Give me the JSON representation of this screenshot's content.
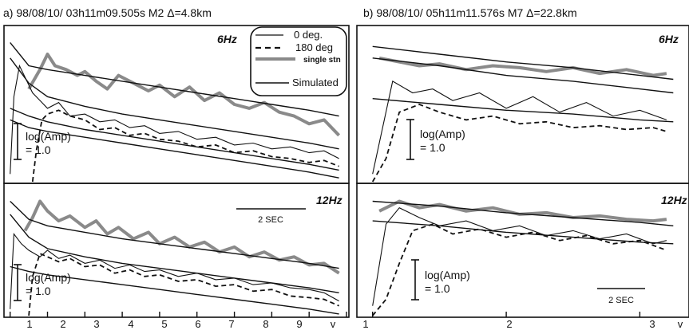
{
  "panels": [
    {
      "header": "a)  98/08/10/ 03h11m09.505s   M2  Δ=4.8km",
      "legend": [
        "0 deg.",
        "180 deg",
        "single stn",
        "Simulated"
      ],
      "subplots": [
        {
          "freq": "6Hz",
          "scale_label": [
            "log(Amp)",
            "= 1.0"
          ]
        },
        {
          "freq": "12Hz",
          "scale_label": [
            "log(Amp)",
            "= 1.0"
          ],
          "time_bar_label": "2 SEC"
        }
      ],
      "x_ticks": [
        "1",
        "2",
        "3",
        "4",
        "5",
        "6",
        "7",
        "8",
        "9",
        "v"
      ]
    },
    {
      "header": "b)  98/08/10/ 05h11m11.576s   M7  Δ=22.8km",
      "subplots": [
        {
          "freq": "6Hz",
          "scale_label": [
            "log(Amp)",
            "= 1.0"
          ]
        },
        {
          "freq": "12Hz",
          "scale_label": [
            "log(Amp)",
            "= 1.0"
          ],
          "time_bar_label": "2 SEC"
        }
      ],
      "x_ticks": [
        "1",
        "2",
        "3",
        "v"
      ]
    }
  ],
  "colors": {
    "frame": "#111111",
    "observed": "#111111",
    "single_station": "#8a8a8a",
    "simulated": "#111111"
  },
  "chart_data": [
    {
      "type": "line",
      "panel": "a",
      "freq": "6Hz",
      "series": [
        {
          "name": "0 deg.",
          "x": [
            1.0,
            1.1,
            1.25,
            1.4,
            1.6,
            1.8,
            2.0,
            2.3,
            2.6,
            3.0,
            3.4,
            3.8,
            4.2,
            4.6,
            5.0,
            5.5,
            6.0,
            6.5,
            7.0,
            7.5,
            8.0,
            8.5,
            9.0,
            9.4,
            9.8
          ],
          "y": [
            0.2,
            2.2,
            3.0,
            2.7,
            2.3,
            2.1,
            1.9,
            2.05,
            1.7,
            1.75,
            1.55,
            1.6,
            1.4,
            1.45,
            1.25,
            1.3,
            1.1,
            1.15,
            0.95,
            1.0,
            0.85,
            0.9,
            0.75,
            0.8,
            0.6
          ]
        },
        {
          "name": "180 deg",
          "x": [
            1.6,
            1.7,
            1.85,
            2.0,
            2.3,
            2.6,
            3.0,
            3.4,
            3.8,
            4.2,
            4.6,
            5.0,
            5.5,
            6.0,
            6.5,
            7.0,
            7.5,
            8.0,
            8.5,
            9.0,
            9.4,
            9.8
          ],
          "y": [
            0.0,
            0.8,
            1.6,
            1.75,
            1.85,
            1.7,
            1.6,
            1.35,
            1.4,
            1.2,
            1.25,
            1.1,
            1.05,
            0.9,
            0.95,
            0.75,
            0.8,
            0.65,
            0.6,
            0.5,
            0.55,
            0.4
          ]
        },
        {
          "name": "single stn",
          "x": [
            1.5,
            1.8,
            2.0,
            2.2,
            2.5,
            2.8,
            3.0,
            3.3,
            3.6,
            3.9,
            4.3,
            4.7,
            5.0,
            5.4,
            5.8,
            6.2,
            6.6,
            7.0,
            7.4,
            7.8,
            8.2,
            8.6,
            9.0,
            9.4,
            9.8
          ],
          "y": [
            2.4,
            2.9,
            3.3,
            3.0,
            2.9,
            2.75,
            2.85,
            2.6,
            2.4,
            2.75,
            2.55,
            2.35,
            2.5,
            2.2,
            2.45,
            2.1,
            2.3,
            2.0,
            1.9,
            2.05,
            1.8,
            1.7,
            1.5,
            1.6,
            1.2
          ]
        },
        {
          "name": "Simulated",
          "x": [
            1.0,
            1.5,
            2.0,
            3.0,
            4.0,
            5.0,
            6.0,
            7.0,
            8.0,
            9.0,
            9.8
          ],
          "y": [
            3.6,
            3.0,
            2.9,
            2.75,
            2.6,
            2.45,
            2.3,
            2.15,
            2.0,
            1.85,
            1.7
          ]
        },
        {
          "name": "Simulated",
          "x": [
            1.0,
            1.5,
            2.0,
            3.0,
            4.0,
            5.0,
            6.0,
            7.0,
            8.0,
            9.0,
            9.8
          ],
          "y": [
            3.2,
            2.55,
            2.2,
            1.95,
            1.75,
            1.6,
            1.45,
            1.3,
            1.15,
            1.0,
            0.85
          ]
        },
        {
          "name": "Simulated",
          "x": [
            1.0,
            1.5,
            2.0,
            3.0,
            4.0,
            5.0,
            6.0,
            7.0,
            8.0,
            9.0,
            9.8
          ],
          "y": [
            1.6,
            1.4,
            1.3,
            1.15,
            1.0,
            0.85,
            0.7,
            0.55,
            0.4,
            0.25,
            0.1
          ]
        },
        {
          "name": "Simulated",
          "x": [
            1.0,
            1.5,
            2.0,
            3.0,
            4.0,
            5.0,
            6.0,
            7.0,
            8.0,
            9.0,
            9.8
          ],
          "y": [
            1.9,
            1.7,
            1.55,
            1.35,
            1.2,
            1.05,
            0.9,
            0.75,
            0.6,
            0.45,
            0.3
          ]
        }
      ],
      "xlim": [
        0.9,
        10.0
      ],
      "ylim": [
        0,
        4
      ]
    },
    {
      "type": "line",
      "panel": "a",
      "freq": "12Hz",
      "series": [
        {
          "name": "0 deg.",
          "x": [
            1.0,
            1.1,
            1.3,
            1.5,
            1.8,
            2.0,
            2.3,
            2.6,
            3.0,
            3.4,
            3.8,
            4.2,
            4.6,
            5.0,
            5.5,
            6.0,
            6.5,
            7.0,
            7.5,
            8.0,
            8.5,
            9.0,
            9.4,
            9.8
          ],
          "y": [
            0.2,
            2.5,
            2.2,
            2.0,
            1.8,
            2.0,
            1.75,
            1.85,
            1.6,
            1.7,
            1.45,
            1.55,
            1.35,
            1.4,
            1.2,
            1.3,
            1.1,
            1.15,
            0.95,
            1.0,
            0.85,
            0.8,
            0.7,
            0.45
          ]
        },
        {
          "name": "180 deg",
          "x": [
            1.5,
            1.6,
            1.8,
            2.0,
            2.3,
            2.6,
            3.0,
            3.4,
            3.8,
            4.2,
            4.6,
            5.0,
            5.5,
            6.0,
            6.5,
            7.0,
            7.5,
            8.0,
            8.5,
            9.0,
            9.4,
            9.8
          ],
          "y": [
            0.0,
            1.2,
            1.9,
            1.8,
            1.65,
            1.75,
            1.5,
            1.55,
            1.3,
            1.4,
            1.2,
            1.25,
            1.05,
            1.1,
            0.9,
            0.95,
            0.75,
            0.8,
            0.6,
            0.55,
            0.5,
            0.3
          ]
        },
        {
          "name": "single stn",
          "x": [
            1.4,
            1.6,
            1.8,
            2.0,
            2.3,
            2.6,
            3.0,
            3.3,
            3.6,
            3.9,
            4.3,
            4.7,
            5.0,
            5.4,
            5.8,
            6.2,
            6.6,
            7.0,
            7.4,
            7.8,
            8.2,
            8.6,
            9.0,
            9.4,
            9.8
          ],
          "y": [
            2.6,
            3.0,
            3.5,
            3.2,
            2.9,
            3.05,
            2.7,
            2.9,
            2.5,
            2.7,
            2.35,
            2.55,
            2.2,
            2.4,
            2.1,
            2.25,
            1.95,
            2.1,
            1.8,
            1.95,
            1.7,
            1.8,
            1.55,
            1.6,
            1.3
          ]
        },
        {
          "name": "Simulated",
          "x": [
            1.0,
            1.5,
            2.0,
            3.0,
            4.0,
            5.0,
            6.0,
            7.0,
            8.0,
            9.0,
            9.8
          ],
          "y": [
            3.5,
            2.95,
            2.75,
            2.55,
            2.35,
            2.2,
            2.05,
            1.9,
            1.75,
            1.6,
            1.45
          ]
        },
        {
          "name": "Simulated",
          "x": [
            1.0,
            1.5,
            2.0,
            3.0,
            4.0,
            5.0,
            6.0,
            7.0,
            8.0,
            9.0,
            9.8
          ],
          "y": [
            3.1,
            2.4,
            2.05,
            1.8,
            1.6,
            1.45,
            1.3,
            1.15,
            1.0,
            0.85,
            0.7
          ]
        },
        {
          "name": "Simulated",
          "x": [
            1.0,
            1.5,
            2.0,
            3.0,
            4.0,
            5.0,
            6.0,
            7.0,
            8.0,
            9.0,
            9.8
          ],
          "y": [
            1.5,
            1.35,
            1.25,
            1.1,
            0.95,
            0.8,
            0.65,
            0.5,
            0.35,
            0.2,
            0.05
          ]
        }
      ],
      "xlim": [
        0.9,
        10.0
      ],
      "ylim": [
        0,
        4
      ]
    },
    {
      "type": "line",
      "panel": "b",
      "freq": "6Hz",
      "series": [
        {
          "name": "0 deg.",
          "x": [
            1.0,
            1.15,
            1.3,
            1.45,
            1.6,
            1.8,
            2.0,
            2.2,
            2.4,
            2.6,
            2.8,
            3.0,
            3.2
          ],
          "y": [
            0.2,
            2.6,
            2.3,
            2.4,
            2.1,
            2.3,
            1.9,
            2.2,
            1.8,
            2.05,
            1.7,
            1.85,
            1.6
          ]
        },
        {
          "name": "180 deg",
          "x": [
            1.0,
            1.1,
            1.2,
            1.35,
            1.5,
            1.7,
            1.9,
            2.1,
            2.3,
            2.5,
            2.7,
            2.9,
            3.1,
            3.2
          ],
          "y": [
            0.0,
            0.6,
            1.8,
            2.0,
            1.8,
            1.6,
            1.7,
            1.5,
            1.55,
            1.4,
            1.45,
            1.35,
            1.4,
            1.3
          ]
        },
        {
          "name": "single stn",
          "x": [
            1.05,
            1.2,
            1.35,
            1.5,
            1.7,
            1.9,
            2.1,
            2.3,
            2.5,
            2.7,
            2.9,
            3.1,
            3.2
          ],
          "y": [
            3.2,
            3.1,
            3.0,
            3.05,
            2.9,
            3.0,
            2.95,
            2.85,
            2.95,
            2.8,
            2.9,
            2.75,
            2.8
          ]
        },
        {
          "name": "Simulated",
          "x": [
            1.0,
            1.5,
            2.0,
            2.5,
            3.0,
            3.25
          ],
          "y": [
            3.5,
            3.3,
            3.1,
            2.95,
            2.75,
            2.65
          ]
        },
        {
          "name": "Simulated",
          "x": [
            1.0,
            1.5,
            2.0,
            2.5,
            3.0,
            3.25
          ],
          "y": [
            3.2,
            3.0,
            2.75,
            2.6,
            2.4,
            2.3
          ]
        },
        {
          "name": "Simulated",
          "x": [
            1.0,
            1.5,
            2.0,
            2.5,
            3.0,
            3.25
          ],
          "y": [
            2.15,
            2.0,
            1.85,
            1.75,
            1.6,
            1.55
          ]
        }
      ],
      "xlim": [
        0.9,
        3.35
      ],
      "ylim": [
        0,
        4
      ]
    },
    {
      "type": "line",
      "panel": "b",
      "freq": "12Hz",
      "series": [
        {
          "name": "0 deg.",
          "x": [
            1.0,
            1.1,
            1.2,
            1.35,
            1.5,
            1.7,
            1.9,
            2.1,
            2.3,
            2.5,
            2.7,
            2.9,
            3.1,
            3.2
          ],
          "y": [
            0.3,
            2.8,
            3.3,
            3.0,
            2.75,
            2.9,
            2.6,
            2.75,
            2.45,
            2.6,
            2.35,
            2.5,
            2.2,
            2.3
          ]
        },
        {
          "name": "180 deg",
          "x": [
            1.0,
            1.1,
            1.2,
            1.3,
            1.45,
            1.6,
            1.8,
            2.0,
            2.2,
            2.4,
            2.6,
            2.8,
            3.0,
            3.2
          ],
          "y": [
            0.0,
            0.5,
            1.6,
            2.6,
            2.8,
            2.5,
            2.65,
            2.4,
            2.55,
            2.3,
            2.45,
            2.2,
            2.3,
            2.0
          ]
        },
        {
          "name": "single stn",
          "x": [
            1.05,
            1.2,
            1.35,
            1.5,
            1.7,
            1.9,
            2.1,
            2.3,
            2.5,
            2.7,
            2.9,
            3.1,
            3.2
          ],
          "y": [
            3.2,
            3.5,
            3.3,
            3.4,
            3.2,
            3.3,
            3.1,
            3.15,
            3.0,
            3.05,
            2.95,
            2.9,
            2.95
          ]
        },
        {
          "name": "Simulated",
          "x": [
            1.0,
            1.5,
            2.0,
            2.5,
            3.0,
            3.25
          ],
          "y": [
            3.5,
            3.35,
            3.15,
            3.0,
            2.85,
            2.75
          ]
        },
        {
          "name": "Simulated",
          "x": [
            1.0,
            1.5,
            2.0,
            2.5,
            3.0,
            3.25
          ],
          "y": [
            2.9,
            2.75,
            2.55,
            2.4,
            2.25,
            2.2
          ]
        }
      ],
      "xlim": [
        0.9,
        3.35
      ],
      "ylim": [
        0,
        4
      ]
    }
  ]
}
